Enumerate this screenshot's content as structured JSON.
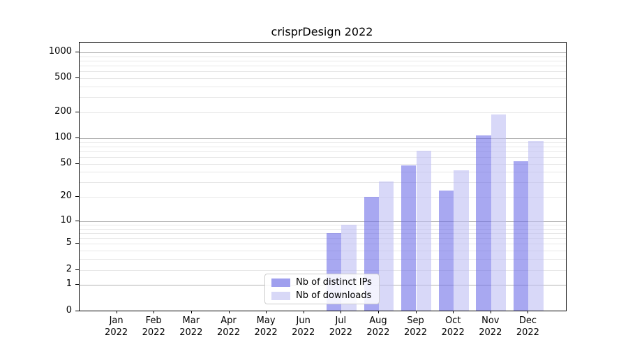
{
  "title": "crisprDesign 2022",
  "chart_data": {
    "type": "bar",
    "title": "crisprDesign 2022",
    "categories": [
      "Jan",
      "Feb",
      "Mar",
      "Apr",
      "May",
      "Jun",
      "Jul",
      "Aug",
      "Sep",
      "Oct",
      "Nov",
      "Dec"
    ],
    "x_year_label": "2022",
    "series": [
      {
        "name": "Nb of distinct IPs",
        "color": "rgba(110,110,232,0.6)",
        "legend_color": "#9f9fee",
        "values": [
          0,
          0,
          0,
          0,
          0,
          0,
          7,
          20,
          48,
          24,
          108,
          54
        ]
      },
      {
        "name": "Nb of downloads",
        "color": "rgba(190,190,243,0.6)",
        "legend_color": "#d8d8f7",
        "values": [
          0,
          0,
          0,
          0,
          0,
          0,
          9,
          31,
          71,
          42,
          190,
          93
        ]
      }
    ],
    "y_ticks": [
      0,
      1,
      2,
      5,
      10,
      20,
      50,
      100,
      200,
      500,
      1000
    ],
    "ylim": [
      0,
      1300
    ],
    "y_scale": "log10(1+x)",
    "grid": true,
    "grid_major_color": "#b0b0b0",
    "grid_minor_color": "#e7e7e7",
    "legend_position": "lower center",
    "xlabel": "",
    "ylabel": ""
  }
}
